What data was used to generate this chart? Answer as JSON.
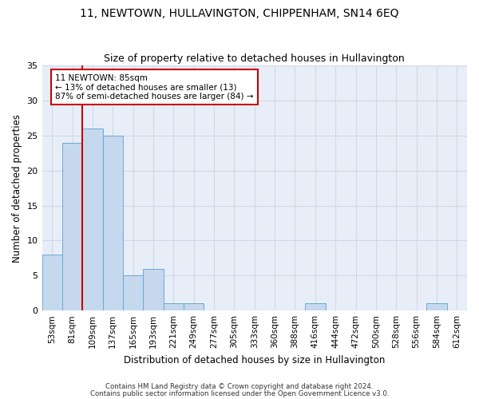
{
  "title1": "11, NEWTOWN, HULLAVINGTON, CHIPPENHAM, SN14 6EQ",
  "title2": "Size of property relative to detached houses in Hullavington",
  "xlabel": "Distribution of detached houses by size in Hullavington",
  "ylabel": "Number of detached properties",
  "categories": [
    "53sqm",
    "81sqm",
    "109sqm",
    "137sqm",
    "165sqm",
    "193sqm",
    "221sqm",
    "249sqm",
    "277sqm",
    "305sqm",
    "333sqm",
    "360sqm",
    "388sqm",
    "416sqm",
    "444sqm",
    "472sqm",
    "500sqm",
    "528sqm",
    "556sqm",
    "584sqm",
    "612sqm"
  ],
  "values": [
    8,
    24,
    26,
    25,
    5,
    6,
    1,
    1,
    0,
    0,
    0,
    0,
    0,
    1,
    0,
    0,
    0,
    0,
    0,
    1,
    0
  ],
  "bar_color": "#c5d8ed",
  "bar_edge_color": "#6aaad4",
  "vline_x": 1.5,
  "vline_color": "#cc0000",
  "annotation_text": "11 NEWTOWN: 85sqm\n← 13% of detached houses are smaller (13)\n87% of semi-detached houses are larger (84) →",
  "annotation_box_color": "#ffffff",
  "annotation_box_edge": "#cc0000",
  "ylim": [
    0,
    35
  ],
  "yticks": [
    0,
    5,
    10,
    15,
    20,
    25,
    30,
    35
  ],
  "grid_color": "#d0d8e8",
  "bg_color": "#e8eef8",
  "footer1": "Contains HM Land Registry data © Crown copyright and database right 2024.",
  "footer2": "Contains public sector information licensed under the Open Government Licence v3.0.",
  "title_fontsize": 10,
  "subtitle_fontsize": 9,
  "fig_width": 6.0,
  "fig_height": 5.0,
  "dpi": 100
}
